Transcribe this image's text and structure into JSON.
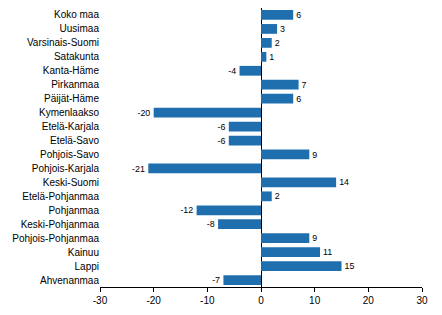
{
  "chart_data": {
    "type": "bar",
    "orientation": "horizontal",
    "categories": [
      "Koko maa",
      "Uusimaa",
      "Varsinais-Suomi",
      "Satakunta",
      "Kanta-Häme",
      "Pirkanmaa",
      "Päijät-Häme",
      "Kymenlaakso",
      "Etelä-Karjala",
      "Etelä-Savo",
      "Pohjois-Savo",
      "Pohjois-Karjala",
      "Keski-Suomi",
      "Etelä-Pohjanmaa",
      "Pohjanmaa",
      "Keski-Pohjanmaa",
      "Pohjois-Pohjanmaa",
      "Kainuu",
      "Lappi",
      "Ahvenanmaa"
    ],
    "values": [
      6,
      3,
      2,
      1,
      -4,
      7,
      6,
      -20,
      -6,
      -6,
      9,
      -21,
      14,
      2,
      -12,
      -8,
      9,
      11,
      15,
      -7
    ],
    "color": "#1f6fae",
    "xlim": [
      -30,
      30
    ],
    "xticks": [
      -30,
      -20,
      -10,
      0,
      10,
      20,
      30
    ],
    "grid": false,
    "data_labels": true
  }
}
